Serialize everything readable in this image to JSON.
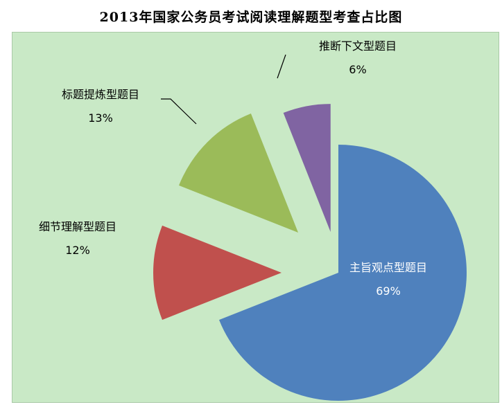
{
  "title": "2013年国家公务员考试阅读理解题型考查占比图",
  "chart_data": {
    "type": "pie",
    "title": "2013年国家公务员考试阅读理解题型考查占比图",
    "categories": [
      "主旨观点型题目",
      "细节理解型题目",
      "标题提炼型题目",
      "推断下文型题目"
    ],
    "values": [
      69,
      12,
      13,
      6
    ],
    "value_labels": [
      "69%",
      "12%",
      "13%",
      "6%"
    ],
    "colors": [
      "#4f81bd",
      "#c0504d",
      "#9bbb59",
      "#8064a2"
    ],
    "exploded": true,
    "legend": "none",
    "label_style": "category name and percentage"
  }
}
